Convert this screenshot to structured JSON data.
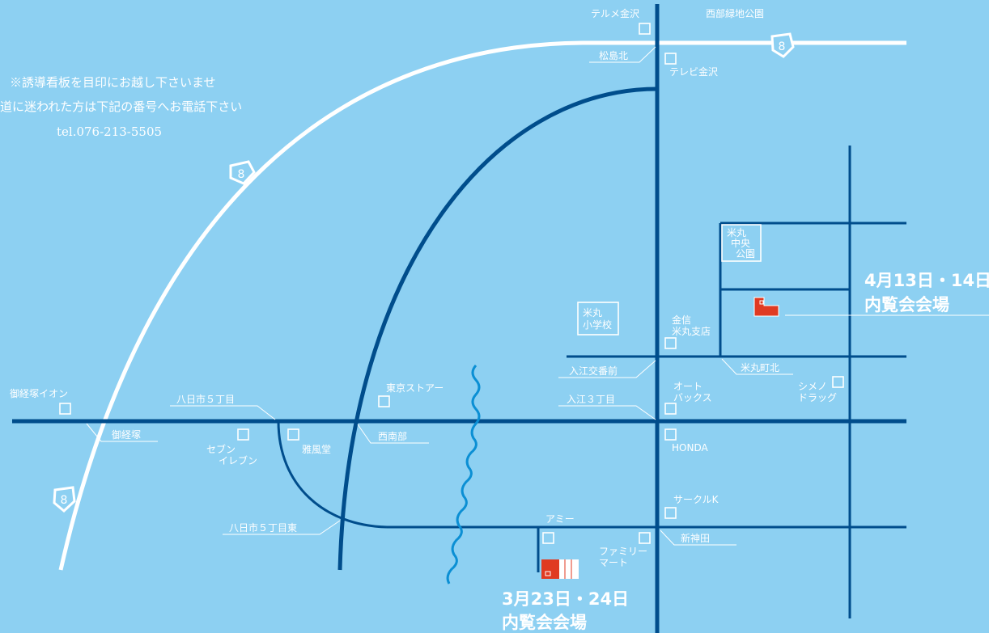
{
  "colors": {
    "background": "#8dd0f2",
    "road": "#004d8c",
    "highway": "#ffffff",
    "venue": "#e03a22",
    "river": "#0b8fd4",
    "text": "#ffffff"
  },
  "notice": {
    "line1": "※誘導看板を目印にお越し下さいませ",
    "line2": "道に迷われた方は下記の番号へお電話下さい",
    "phone": "tel.076-213-5505"
  },
  "route_number": "8",
  "landmarks": {
    "terume": "テルメ金沢",
    "nishibu_park": "西部緑地公園",
    "matsushima_kita": "松島北",
    "tv_kanazawa": "テレビ金沢",
    "yonemaru_park": [
      "米丸",
      "中央",
      "公園"
    ],
    "yonemaru_school": [
      "米丸",
      "小学校"
    ],
    "kinshin": [
      "金信",
      "米丸支店"
    ],
    "irie_koban": "入江交番前",
    "yonemaru_kita": "米丸町北",
    "autobacs": [
      "オート",
      "バックス"
    ],
    "shimeno": [
      "シメノ",
      "ドラッグ"
    ],
    "irie3": "入江３丁目",
    "youkaichi5": "八日市５丁目",
    "tokyo_store": "東京ストアー",
    "onkyozuka_aeon": "御経塚イオン",
    "onkyozuka": "御経塚",
    "seven": [
      "セブン",
      "イレブン"
    ],
    "gafudo": "雅風堂",
    "seinanbu": "西南部",
    "honda": "HONDA",
    "circlek": "サークルK",
    "youkaichi5_east": "八日市５丁目東",
    "ami": "アミー",
    "familymart": [
      "ファミリー",
      "マート"
    ],
    "shinkanda": "新神田"
  },
  "venues": {
    "venue1": {
      "date": "4月13日・14日",
      "label": "内覧会会場"
    },
    "venue2": {
      "date": "3月23日・24日",
      "label": "内覧会会場"
    }
  }
}
